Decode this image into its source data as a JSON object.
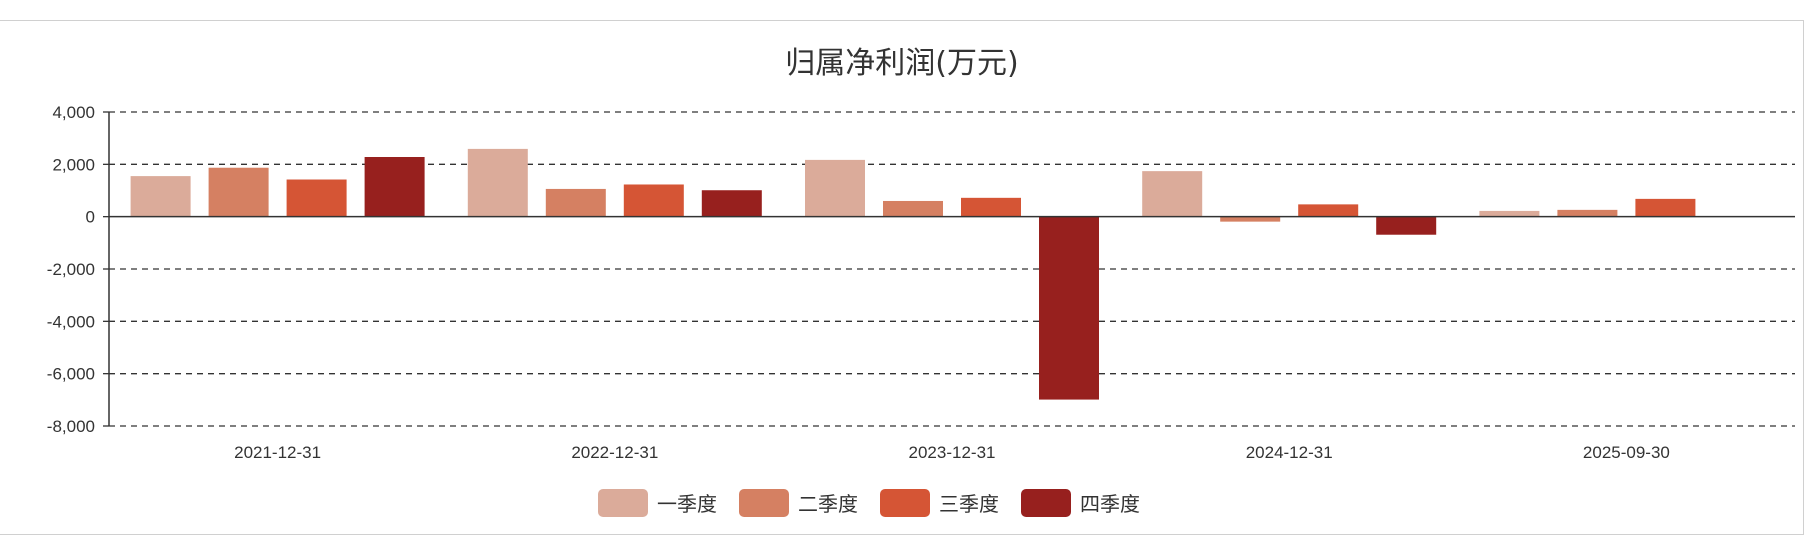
{
  "chart_data": {
    "type": "bar",
    "title": "归属净利润(万元)",
    "xlabel": "",
    "ylabel": "",
    "categories": [
      "2021-12-31",
      "2022-12-31",
      "2023-12-31",
      "2024-12-31",
      "2025-09-30"
    ],
    "yticks": [
      "4,000",
      "2,000",
      "0",
      "-2,000",
      "-4,000",
      "-6,000",
      "-8,000"
    ],
    "ylim": [
      -8000,
      4000
    ],
    "grid": true,
    "legend_position": "bottom",
    "series": [
      {
        "name": "一季度",
        "color": "#dbab9a",
        "values": [
          1550,
          2590,
          2170,
          1740,
          220
        ]
      },
      {
        "name": "二季度",
        "color": "#d58062",
        "values": [
          1870,
          1060,
          600,
          -190,
          260
        ]
      },
      {
        "name": "三季度",
        "color": "#d55535",
        "values": [
          1420,
          1230,
          720,
          470,
          680
        ]
      },
      {
        "name": "四季度",
        "color": "#97201e",
        "values": [
          2280,
          1010,
          -6990,
          -690,
          null
        ]
      }
    ]
  }
}
